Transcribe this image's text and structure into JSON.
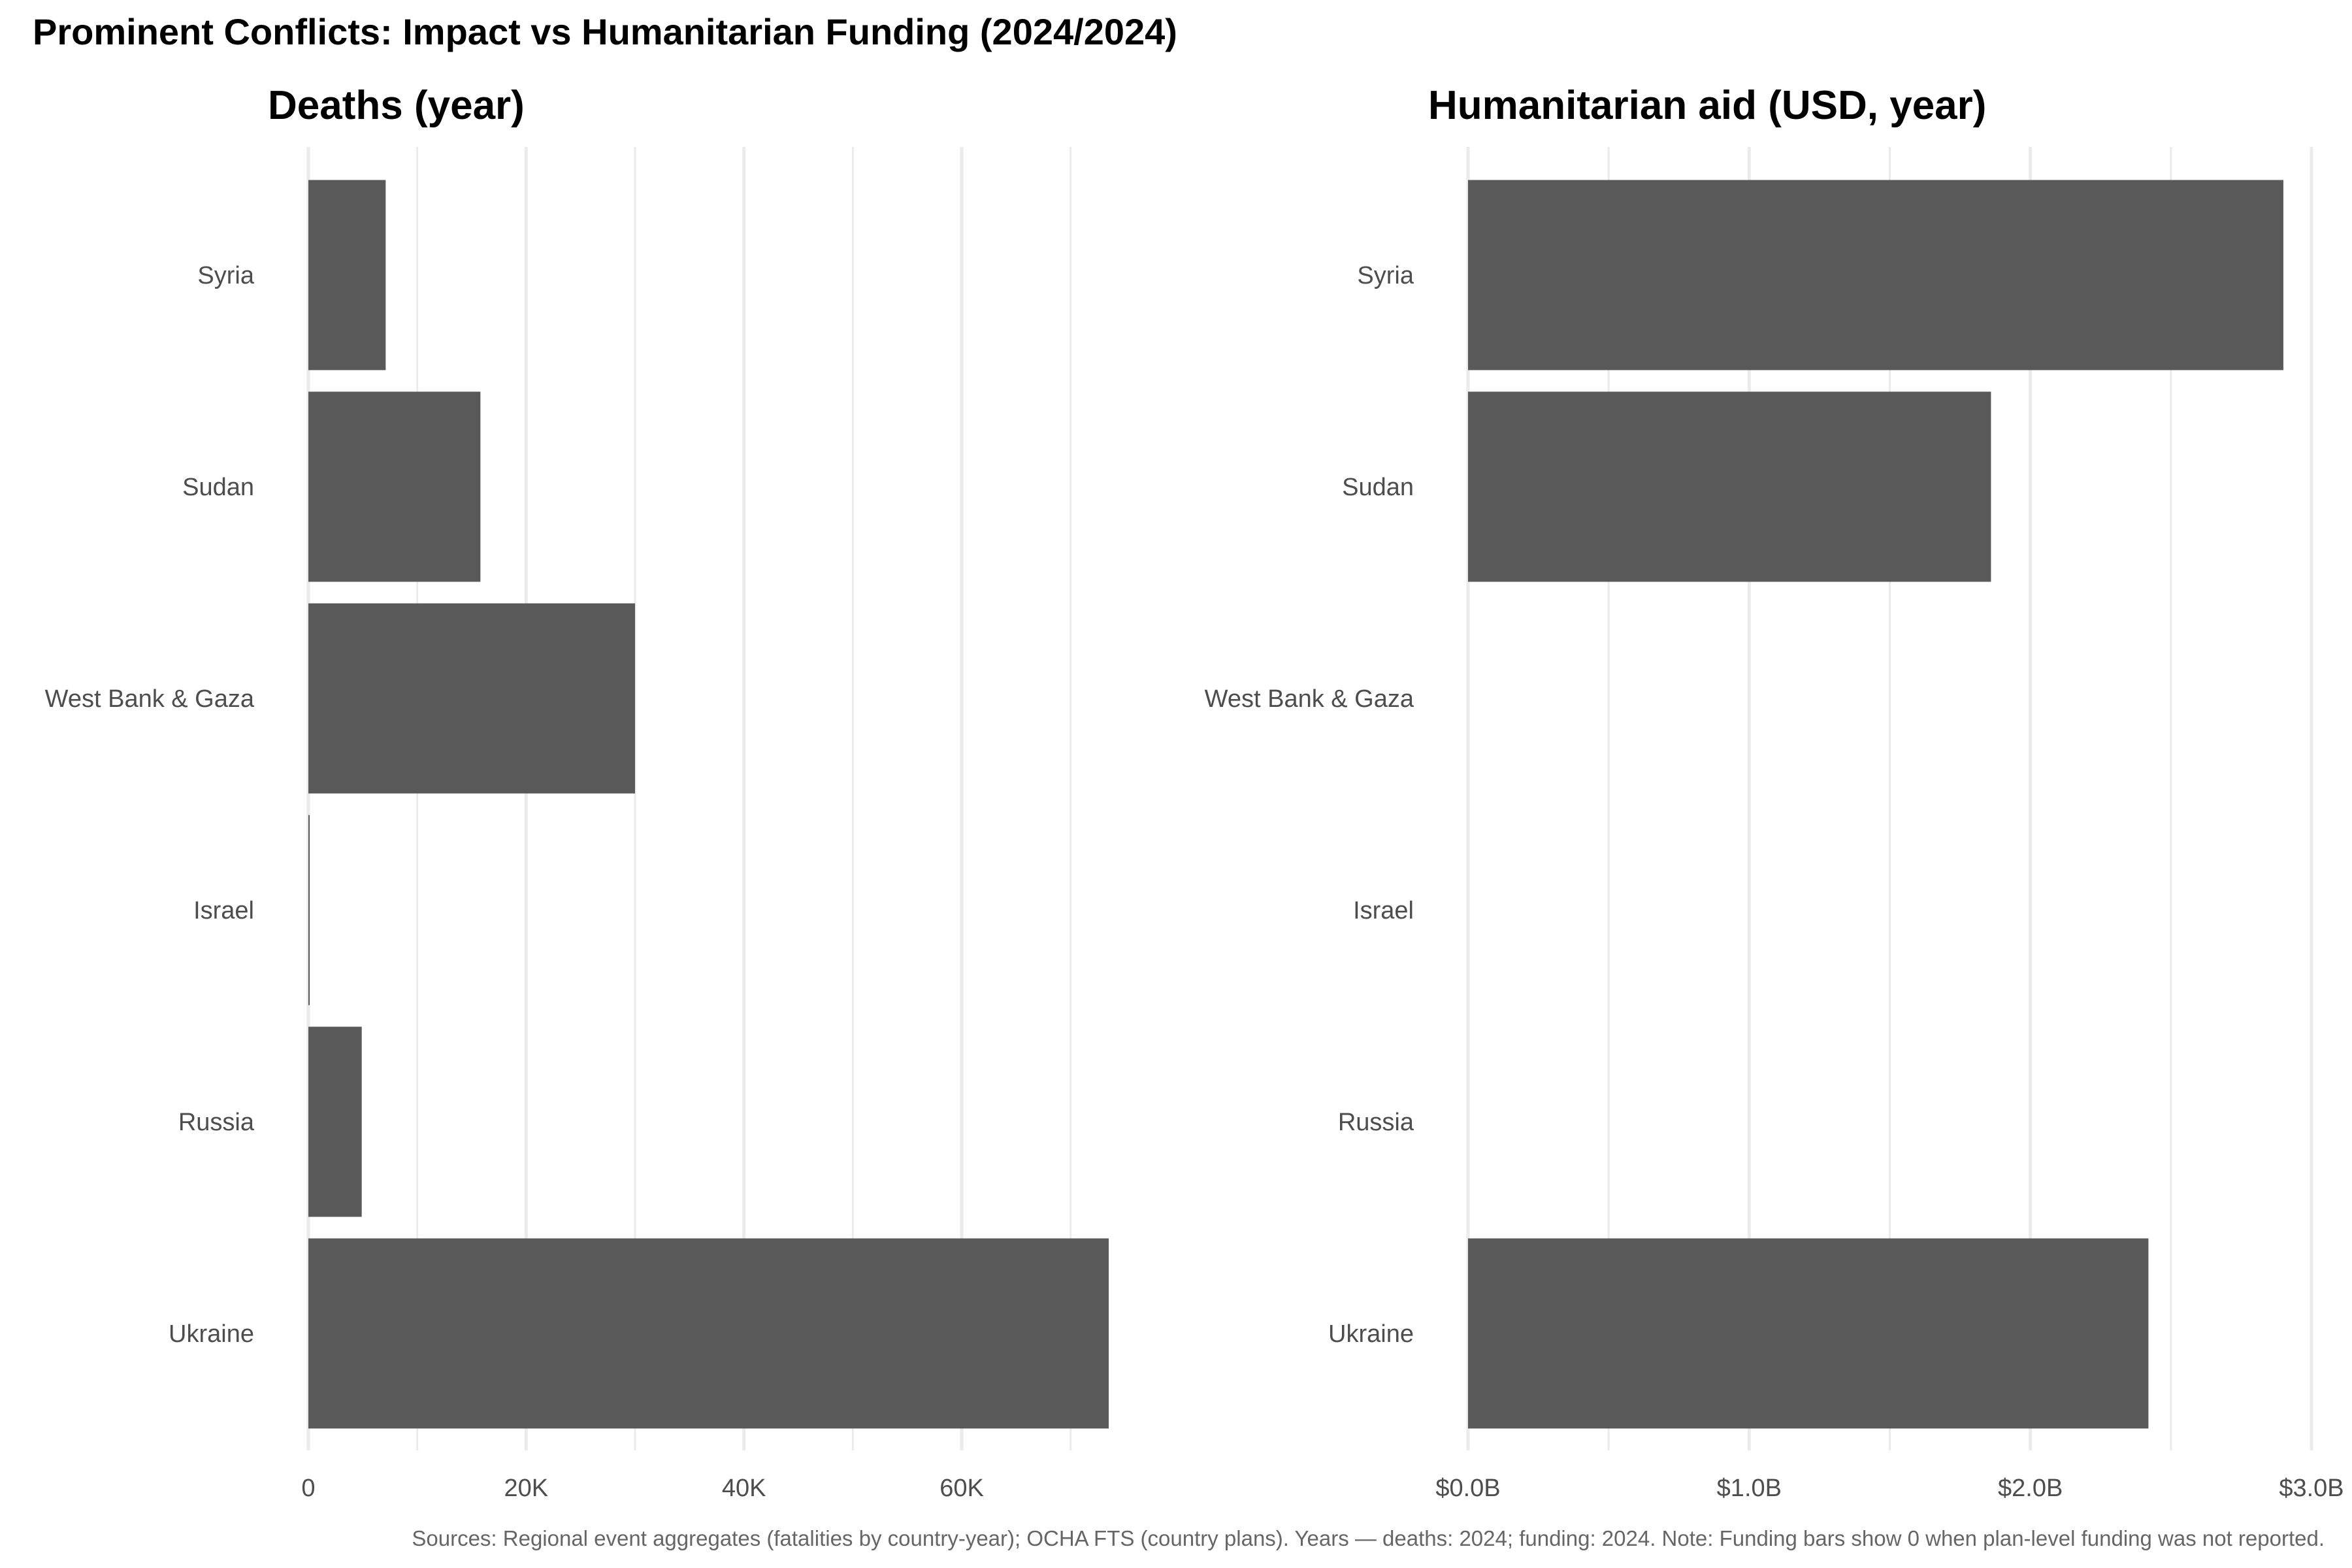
{
  "chart_title": "Prominent Conflicts: Impact vs Humanitarian Funding (2024/2024)",
  "caption": "Sources: Regional event aggregates (fatalities by country-year); OCHA FTS (country plans). Years — deaths: 2024; funding: 2024. Note: Funding bars show 0 when plan-level funding was not reported.",
  "colors": {
    "bar": "#595959",
    "grid": "#ebebeb",
    "text": "#4d4d4d",
    "title": "#000000"
  },
  "chart_data": [
    {
      "type": "bar",
      "orientation": "horizontal",
      "title": "Deaths (year)",
      "categories": [
        "Syria",
        "Sudan",
        "West Bank & Gaza",
        "Israel",
        "Russia",
        "Ukraine"
      ],
      "values": [
        7100,
        15800,
        30000,
        120,
        4900,
        73500
      ],
      "xlim": [
        0,
        75000
      ],
      "ticks": [
        0,
        20000,
        40000,
        60000
      ],
      "tick_labels": [
        "0",
        "20K",
        "40K",
        "60K"
      ],
      "grid": true
    },
    {
      "type": "bar",
      "orientation": "horizontal",
      "title": "Humanitarian aid (USD, year)",
      "categories": [
        "Syria",
        "Sudan",
        "West Bank & Gaza",
        "Israel",
        "Russia",
        "Ukraine"
      ],
      "values": [
        2900000000,
        1860000000,
        0,
        0,
        0,
        2420000000
      ],
      "xlim": [
        0,
        3000000000
      ],
      "ticks": [
        0,
        1000000000,
        2000000000,
        3000000000
      ],
      "tick_labels": [
        "$0.0B",
        "$1.0B",
        "$2.0B",
        "$3.0B"
      ],
      "grid": true
    }
  ]
}
